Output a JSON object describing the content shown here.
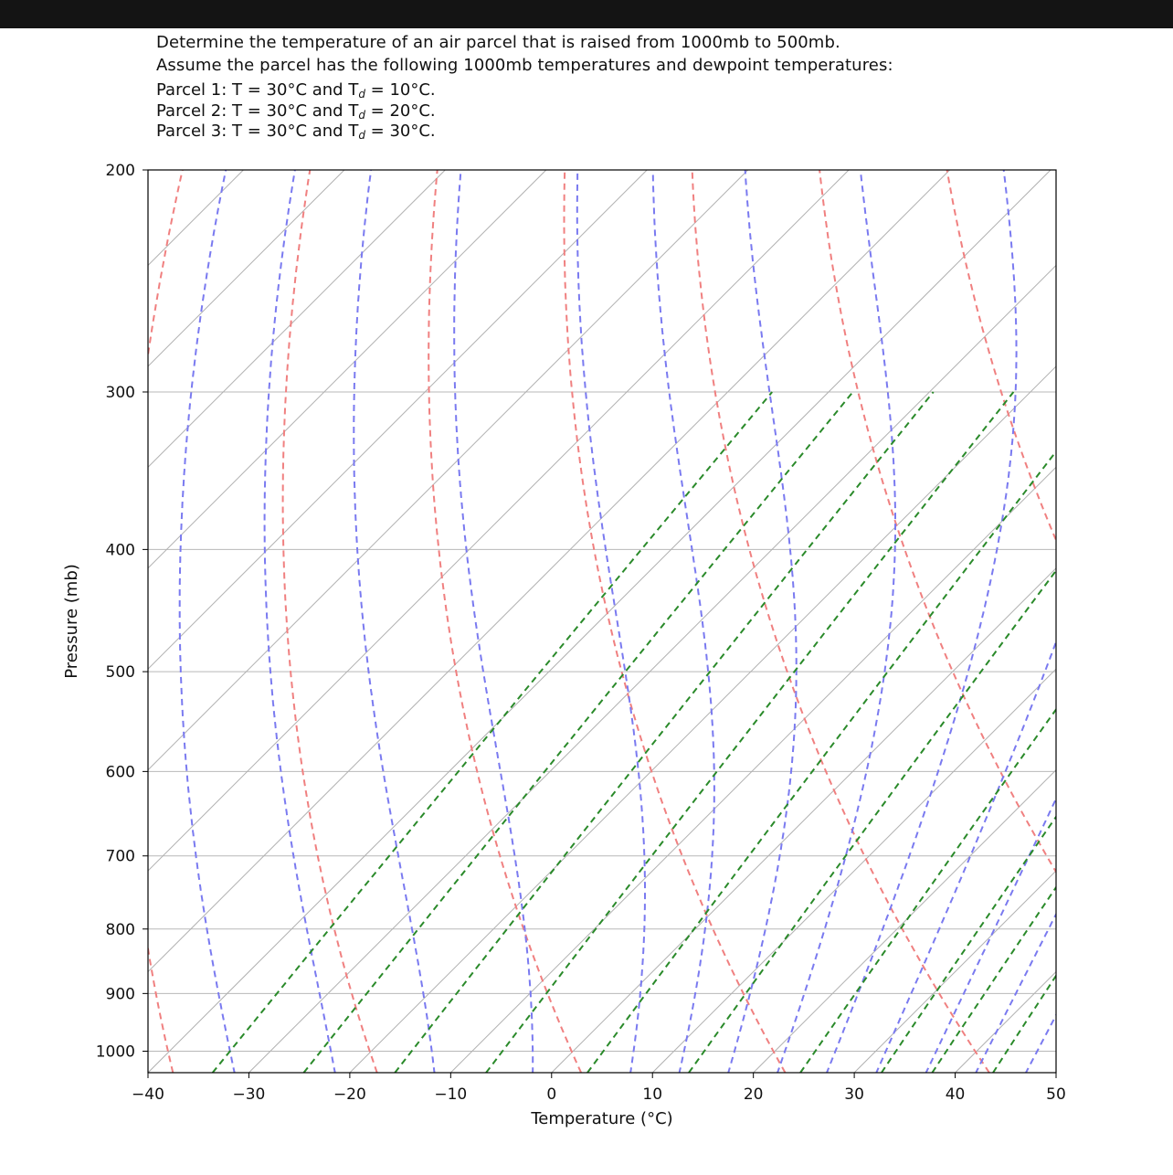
{
  "instructions": {
    "line1": "Determine the temperature of an air parcel that is raised from 1000mb to 500mb.",
    "line2": "Assume the parcel has the following 1000mb temperatures and dewpoint temperatures:",
    "parcels": [
      {
        "prefix": "Parcel 1: T = 30°C and T",
        "sub": "d",
        "suffix": " = 10°C."
      },
      {
        "prefix": "Parcel 2: T = 30°C and T",
        "sub": "d",
        "suffix": " = 20°C."
      },
      {
        "prefix": "Parcel 3: T = 30°C and T",
        "sub": "d",
        "suffix": " = 30°C."
      }
    ]
  },
  "chart_data": {
    "type": "line",
    "chart_kind": "skew-T log-P diagram",
    "xlabel": "Temperature (°C)",
    "ylabel": "Pressure (mb)",
    "xlim": [
      -40,
      50
    ],
    "ylim": [
      1040,
      200
    ],
    "yscale": "log",
    "x_ticks": [
      "−40",
      "−30",
      "−20",
      "−10",
      "0",
      "10",
      "20",
      "30",
      "40",
      "50"
    ],
    "y_ticks": [
      "200",
      "300",
      "400",
      "500",
      "600",
      "700",
      "800",
      "900",
      "1000"
    ],
    "grid": "horizontal at pressure ticks",
    "series": [
      {
        "kind": "isotherms",
        "color": "#b0b0b0",
        "style": "solid",
        "temperatures_c": [
          -140,
          -130,
          -120,
          -110,
          -100,
          -90,
          -80,
          -70,
          -60,
          -50,
          -40,
          -30,
          -20,
          -10,
          0,
          10,
          20,
          30,
          40,
          50
        ]
      },
      {
        "kind": "dry adiabats",
        "color": "#f08080",
        "style": "dashed",
        "theta_k_at_1000mb": [
          233,
          253,
          273,
          293,
          313,
          333,
          353,
          373,
          393,
          413,
          433
        ]
      },
      {
        "kind": "moist adiabats",
        "color": "#7a7af0",
        "style": "dashed",
        "temperature_c_at_1000mb": [
          -34,
          -24,
          -14,
          -4,
          6,
          11,
          16,
          21,
          26,
          31,
          36,
          41,
          46
        ]
      },
      {
        "kind": "mixing ratio lines",
        "color": "#2a8a2a",
        "style": "dashed",
        "dewpoint_c_at_1000mb": [
          -34,
          -25,
          -16,
          -7,
          3,
          13,
          24,
          32,
          37,
          43
        ],
        "p_top_mb": 300
      }
    ],
    "colors": {
      "isotherm": "#b0b0b0",
      "dry_adiabat": "#f08080",
      "moist_adiabat": "#7a7af0",
      "mixing_ratio": "#2a8a2a"
    }
  }
}
